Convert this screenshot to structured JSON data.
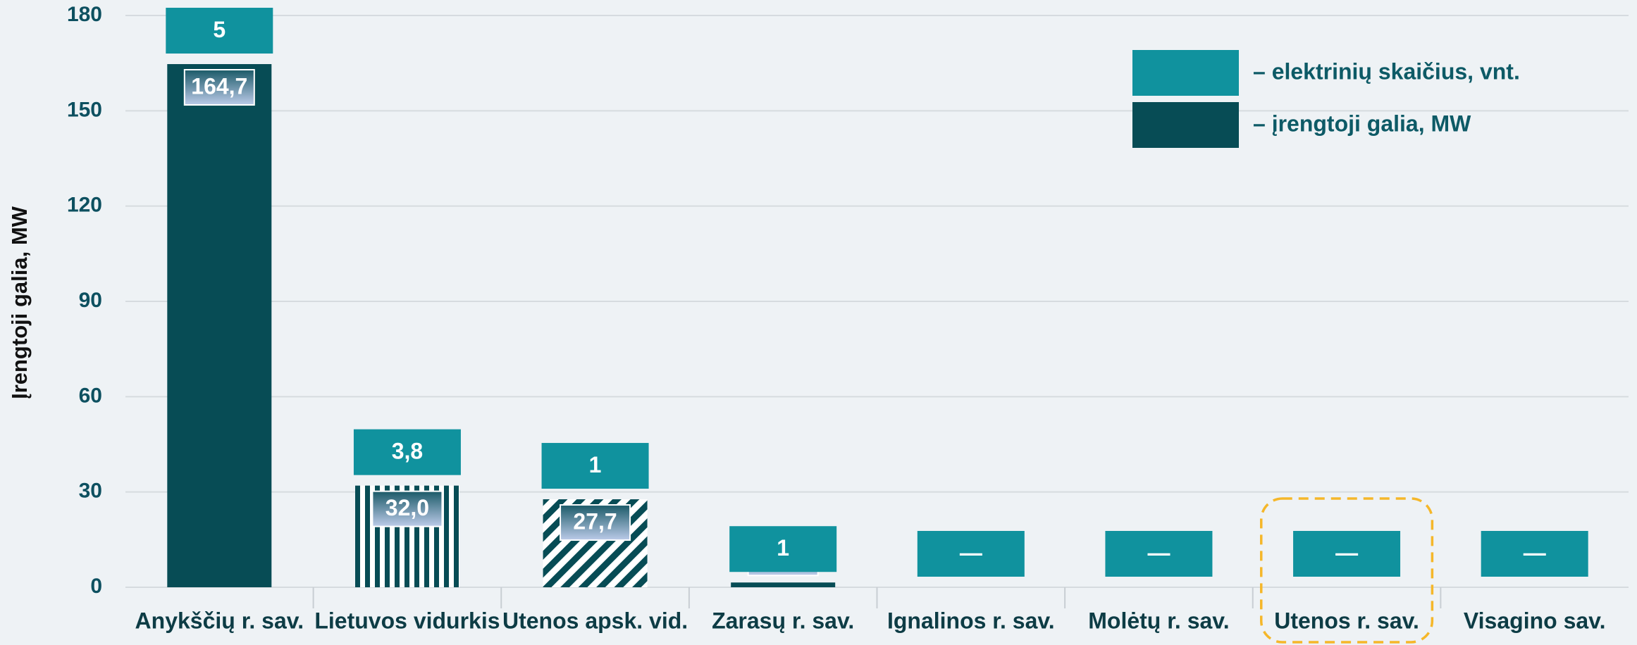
{
  "chart_data": {
    "type": "bar",
    "y_label": "Įrengtoji galia, MW",
    "categories": [
      "Anykščių r. sav.",
      "Lietuvos vidurkis",
      "Utenos apsk. vid.",
      "Zarasų r. sav.",
      "Ignalinos r. sav.",
      "Molėtų r. sav.",
      "Utenos r. sav.",
      "Visagino sav."
    ],
    "series": [
      {
        "name": "– elektrinių skaičius, vnt.",
        "color": "#10929e",
        "role": "count",
        "values": [
          5,
          3.8,
          1,
          1,
          null,
          null,
          null,
          null
        ],
        "value_labels": [
          "5",
          "3,8",
          "1",
          "1",
          "—",
          "—",
          "—",
          "—"
        ]
      },
      {
        "name": "– įrengtoji galia, MW",
        "color": "#074c55",
        "role": "capacity",
        "values": [
          164.7,
          32.0,
          27.7,
          1.5,
          null,
          null,
          null,
          null
        ],
        "value_labels": [
          "164,7",
          "32,0",
          "27,7",
          "1,5",
          null,
          null,
          null,
          null
        ],
        "patterns": [
          "solid",
          "vertical",
          "diagonal",
          "solid",
          "solid",
          "solid",
          "solid",
          "solid"
        ]
      }
    ],
    "ylim": [
      0,
      180
    ],
    "yticks": [
      0,
      30,
      60,
      90,
      120,
      150,
      180
    ],
    "grid": true,
    "legend": "upper right"
  }
}
